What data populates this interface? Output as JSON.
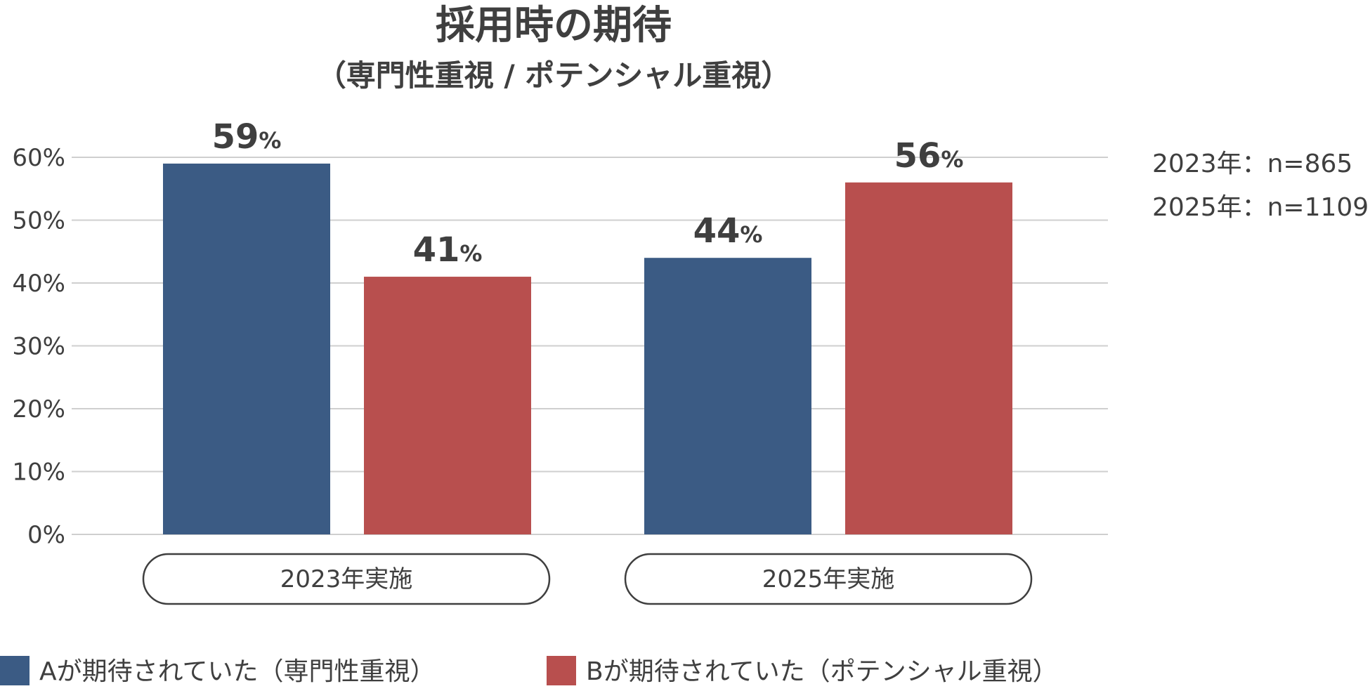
{
  "chart_data": {
    "type": "bar",
    "title": "採用時の期待",
    "subtitle": "（専門性重視 / ポテンシャル重視）",
    "categories": [
      "2023年実施",
      "2025年実施"
    ],
    "series": [
      {
        "name": "Aが期待されていた（専門性重視）",
        "color": "#3b5b84",
        "values": [
          59,
          44
        ]
      },
      {
        "name": "Bが期待されていた（ポテンシャル重視）",
        "color": "#b84f4e",
        "values": [
          41,
          56
        ]
      }
    ],
    "data_labels": [
      [
        "59",
        "44"
      ],
      [
        "41",
        "56"
      ]
    ],
    "data_label_unit": "%",
    "y_ticks": [
      "0%",
      "10%",
      "20%",
      "30%",
      "40%",
      "50%",
      "60%"
    ],
    "ylim": [
      0,
      60
    ],
    "grid": true,
    "legend_position": "bottom-left",
    "notes": [
      "2023年：n=865",
      "2025年：n=1109"
    ]
  }
}
